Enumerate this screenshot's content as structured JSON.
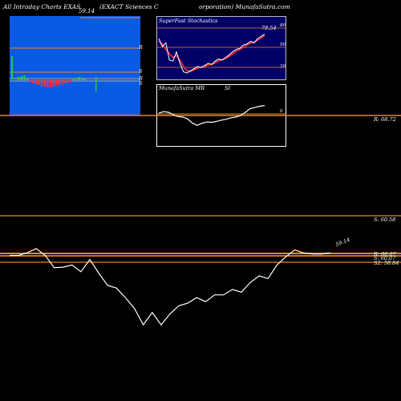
{
  "header": {
    "left": "All Intraday Charts EXAS",
    "middle": "(EXACT Sciences C",
    "right": "orporation) MunafaSutra.com"
  },
  "intraday_panel": {
    "top_label": "59.14",
    "markers": [
      "R",
      "S",
      "R",
      "S"
    ],
    "marker_s_strong": "S"
  },
  "stoch_panel": {
    "title": "SuperFast Stochastics",
    "value_label": "78.54",
    "ticks": [
      "80",
      "50",
      "20"
    ]
  },
  "mrsi_panel": {
    "title_a": "MunafaSutra  MR",
    "title_b": "SI",
    "ticks": [
      "0"
    ]
  },
  "levels": {
    "r": "R: 68.72",
    "s": "S: 60.58",
    "r2": "R: 60.07",
    "s2": "S: 60.07",
    "s3": "S2: 58.84",
    "last": "59.14"
  },
  "chart_data": [
    {
      "type": "line",
      "title": "EXAS price",
      "series": [
        {
          "name": "price",
          "values": [
            59.05,
            59.05,
            59.15,
            59.3,
            59.05,
            58.6,
            58.62,
            58.7,
            58.45,
            58.9,
            58.4,
            57.95,
            57.85,
            57.5,
            57.1,
            56.5,
            56.95,
            56.5,
            56.9,
            57.2,
            57.3,
            57.5,
            57.35,
            57.6,
            57.6,
            57.8,
            57.7,
            58.05,
            58.3,
            58.2,
            58.7,
            59.0,
            59.25,
            59.14,
            59.1,
            59.1,
            59.14
          ]
        }
      ],
      "levels": {
        "resistance": 68.72,
        "support": 60.58,
        "pivot": 60.07,
        "support2": 58.84
      },
      "grid": false
    },
    {
      "type": "line",
      "title": "SuperFast Stochastics",
      "series": [
        {
          "name": "fast",
          "values": [
            70,
            55,
            62,
            30,
            28,
            45,
            24,
            8,
            6,
            10,
            14,
            18,
            16,
            20,
            24,
            22,
            28,
            32,
            30,
            35,
            40,
            46,
            50,
            52,
            58,
            60,
            65,
            62,
            70,
            74,
            78.54
          ]
        },
        {
          "name": "slow",
          "values": [
            65,
            60,
            50,
            42,
            35,
            38,
            30,
            18,
            10,
            9,
            12,
            15,
            17,
            18,
            21,
            22,
            25,
            29,
            31,
            33,
            37,
            42,
            47,
            50,
            54,
            58,
            62,
            63,
            67,
            71,
            76
          ]
        }
      ],
      "ylim": [
        0,
        100
      ]
    },
    {
      "type": "line",
      "title": "MunafaSutra MRSI",
      "series": [
        {
          "name": "mrsi",
          "values": [
            55,
            60,
            58,
            50,
            44,
            42,
            36,
            22,
            15,
            22,
            26,
            25,
            28,
            32,
            35,
            40,
            42,
            48,
            58,
            70,
            74,
            78,
            80
          ]
        }
      ],
      "ylim": [
        0,
        100
      ]
    }
  ]
}
